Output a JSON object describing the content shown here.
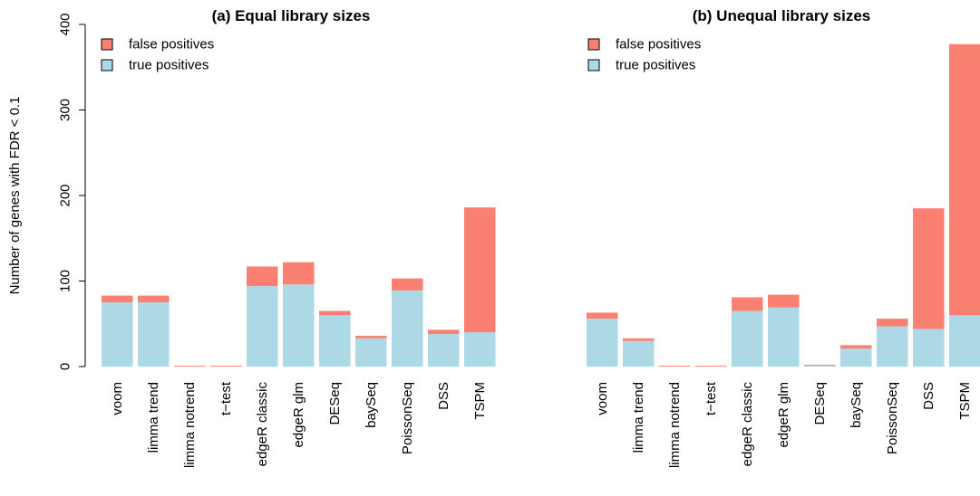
{
  "colors": {
    "false_positives": "#FA8072",
    "true_positives": "#ADD8E6"
  },
  "chart_data": [
    {
      "type": "bar",
      "stacked": true,
      "title": "(a) Equal library sizes",
      "ylabel": "Number of genes with FDR < 0.1",
      "xlabel": "",
      "ylim": [
        0,
        400
      ],
      "yticks": [
        0,
        100,
        200,
        300,
        400
      ],
      "legend": [
        "false positives",
        "true positives"
      ],
      "legend_position": "top-left",
      "categories": [
        "voom",
        "limma trend",
        "limma notrend",
        "t−test",
        "edgeR classic",
        "edgeR glm",
        "DESeq",
        "baySeq",
        "PoissonSeq",
        "DSS",
        "TSPM"
      ],
      "series": [
        {
          "name": "true positives",
          "values": [
            75,
            75,
            0,
            0,
            94,
            96,
            60,
            33,
            89,
            38,
            40
          ]
        },
        {
          "name": "false positives",
          "values": [
            8,
            8,
            1,
            1,
            23,
            26,
            5,
            3,
            14,
            5,
            146
          ]
        }
      ]
    },
    {
      "type": "bar",
      "stacked": true,
      "title": "(b) Unequal library sizes",
      "ylabel": "",
      "xlabel": "",
      "ylim": [
        0,
        400
      ],
      "legend": [
        "false positives",
        "true positives"
      ],
      "legend_position": "top-left",
      "categories": [
        "voom",
        "limma trend",
        "limma notrend",
        "t−test",
        "edgeR classic",
        "edgeR glm",
        "DESeq",
        "baySeq",
        "PoissonSeq",
        "DSS",
        "TSPM"
      ],
      "series": [
        {
          "name": "true positives",
          "values": [
            56,
            30,
            0,
            0,
            65,
            69,
            1,
            21,
            47,
            44,
            60
          ]
        },
        {
          "name": "false positives",
          "values": [
            7,
            3,
            1,
            1,
            16,
            15,
            1,
            4,
            9,
            141,
            317
          ]
        }
      ]
    }
  ]
}
